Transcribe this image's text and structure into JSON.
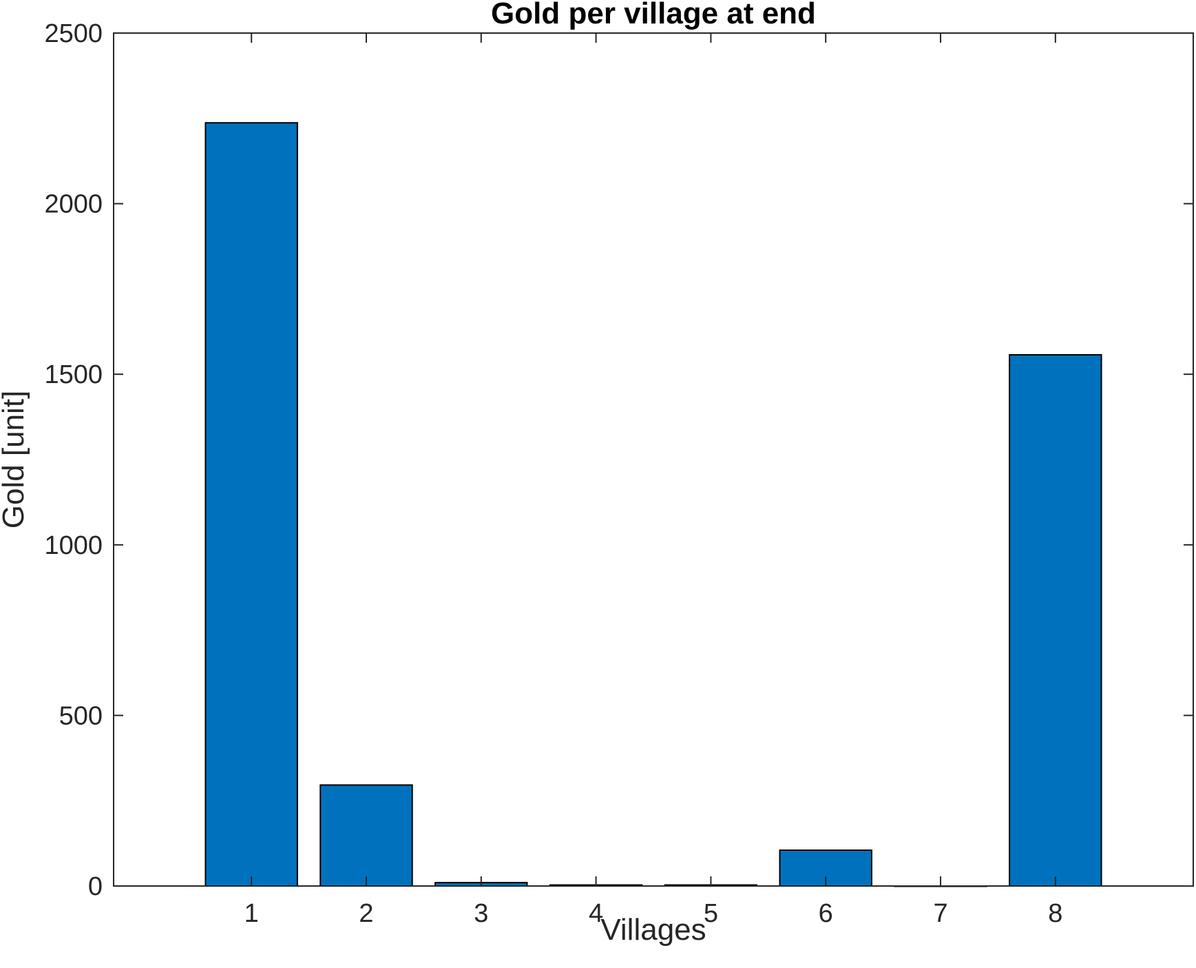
{
  "chart_data": {
    "type": "bar",
    "title": "Gold per village at end",
    "xlabel": "Villages",
    "ylabel": "Gold [unit]",
    "categories": [
      "1",
      "2",
      "3",
      "4",
      "5",
      "6",
      "7",
      "8"
    ],
    "values": [
      2237,
      296,
      10,
      3,
      3,
      105,
      0,
      1557
    ],
    "ylim": [
      0,
      2500
    ],
    "yticks": [
      0,
      500,
      1000,
      1500,
      2000,
      2500
    ],
    "ytick_labels": [
      "0",
      "500",
      "1000",
      "1500",
      "2000",
      "2500"
    ],
    "xlim": [
      -0.2,
      9.2
    ],
    "grid": false,
    "legend": "none",
    "bar_color": "#0072BD",
    "edge_color": "#000000"
  }
}
